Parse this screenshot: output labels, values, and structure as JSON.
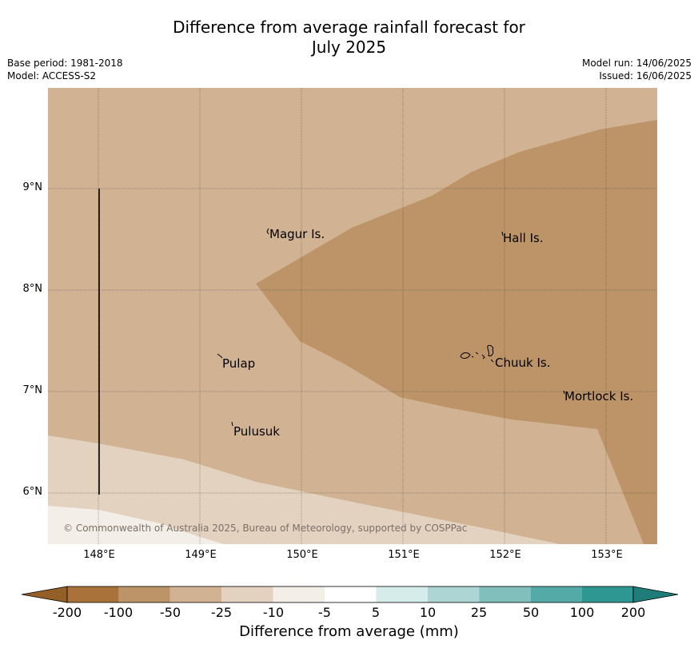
{
  "title": {
    "line1": "Difference from average rainfall forecast for",
    "line2": "July 2025"
  },
  "meta": {
    "base_period": "Base period: 1981-2018",
    "model": "Model: ACCESS-S2",
    "model_run": "Model run: 14/06/2025",
    "issued": "Issued: 16/06/2025"
  },
  "map": {
    "lon_ticks": [
      "148°E",
      "149°E",
      "150°E",
      "151°E",
      "152°E",
      "153°E"
    ],
    "lat_ticks": [
      "9°N",
      "8°N",
      "7°N",
      "6°N"
    ],
    "places": [
      {
        "name": "Magur Is."
      },
      {
        "name": "Hall Is."
      },
      {
        "name": "Pulap"
      },
      {
        "name": "Chuuk Is."
      },
      {
        "name": "Mortlock Is."
      },
      {
        "name": "Pulusuk"
      }
    ],
    "copyright": "© Commonwealth of Australia 2025, Bureau of Meteorology, supported by COSPPac"
  },
  "colorbar": {
    "ticks": [
      "-200",
      "-100",
      "-50",
      "-25",
      "-10",
      "-5",
      "5",
      "10",
      "25",
      "50",
      "100",
      "200"
    ],
    "colors": [
      "#a8723a",
      "#bd9467",
      "#d1b393",
      "#e3d2c0",
      "#f4eee8",
      "#ffffff",
      "#d6ecea",
      "#acd5d3",
      "#80bfbc",
      "#53aaa7",
      "#2e9792"
    ],
    "low_extend_color": "#946028",
    "high_extend_color": "#1f7d79",
    "title": "Difference from average (mm)"
  },
  "colors": {
    "region_lt_minus50": "#bd9467",
    "region_minus50_minus25": "#d1b393",
    "region_minus25_minus10": "#e3d2c0",
    "region_minus10_minus5": "#f4eee8"
  }
}
